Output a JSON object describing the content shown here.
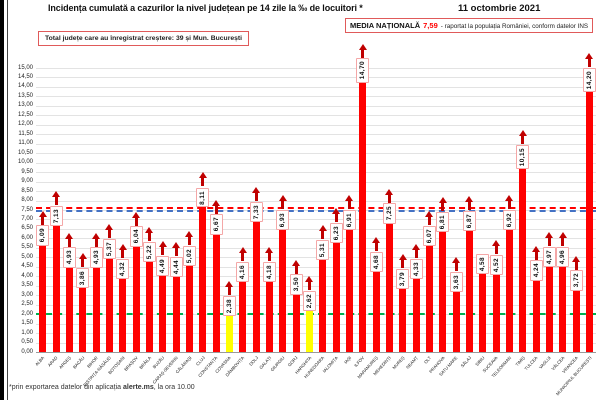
{
  "header": {
    "date": "11 octombrie 2021",
    "total_box_text": "Total județe care au înregistrat creștere:  39 și Mun. București",
    "media_box": {
      "label": "MEDIA NAȚIONALĂ",
      "value": "7,59",
      "suffix": "-  raportat la populația României, conform datelor INS"
    }
  },
  "footer": {
    "prefix": "*prin exportarea datelor din aplicația ",
    "bold": "alerte.ms",
    "suffix": ", la ora 10.00"
  },
  "chart_data": {
    "type": "bar",
    "title": "Incidența cumulată a cazurilor la nivel județean pe 14 zile la ‰ de locuitori *",
    "categories": [
      "ALBA",
      "ARAD",
      "ARGEȘ",
      "BACĂU",
      "BIHOR",
      "BISTRIȚA-NĂSĂUD",
      "BOTOȘANI",
      "BRAȘOV",
      "BRĂILA",
      "BUZĂU",
      "CARAȘ-SEVERIN",
      "CĂLĂRAȘI",
      "CLUJ",
      "CONSTANȚA",
      "COVASNA",
      "DÂMBOVIȚA",
      "DOLJ",
      "GALAȚI",
      "GIURGIU",
      "GORJ",
      "HARGHITA",
      "HUNEDOARA",
      "IALOMIȚA",
      "IAȘI",
      "ILFOV",
      "MARAMUREȘ",
      "MEHEDINȚI",
      "MUREȘ",
      "NEAMȚ",
      "OLT",
      "PRAHOVA",
      "SATU MARE",
      "SĂLAJ",
      "SIBIU",
      "SUCEAVA",
      "TELEORMAN",
      "TIMIȘ",
      "TULCEA",
      "VASLUI",
      "VÂLCEA",
      "VRANCEA",
      "MUNICIPIUL BUCUREȘTI"
    ],
    "values": [
      6.09,
      7.13,
      4.93,
      3.86,
      4.93,
      5.37,
      4.32,
      6.04,
      5.22,
      4.49,
      4.44,
      5.02,
      8.11,
      6.67,
      2.38,
      4.16,
      7.33,
      4.18,
      6.93,
      3.5,
      2.62,
      5.31,
      6.23,
      6.91,
      14.7,
      4.68,
      7.25,
      3.79,
      4.33,
      6.07,
      6.81,
      3.63,
      6.87,
      4.58,
      4.52,
      6.92,
      10.15,
      4.24,
      4.97,
      4.96,
      3.72,
      14.2
    ],
    "highlighted_yellow": [
      "COVASNA",
      "HARGHITA"
    ],
    "no_arrow": [
      "SIBIU"
    ],
    "ylim": [
      0,
      15
    ],
    "ytick_step": 0.5,
    "grid": true,
    "decimal_separator": ",",
    "reference_lines": [
      {
        "name": "media-nationala-line",
        "value": 7.59,
        "color": "#FF0000"
      },
      {
        "name": "secondary-blue-dashed-line",
        "value": 7.45,
        "color": "#4472C4"
      },
      {
        "name": "green-threshold-line",
        "value": 2.0,
        "color": "#00B050"
      }
    ],
    "colors": {
      "bar": "#FF0000",
      "bar_highlight": "#FFFF00",
      "arrow": "#C00000",
      "label_box_border": "#F4A7A7",
      "media_value_text": "#FF0000"
    }
  }
}
